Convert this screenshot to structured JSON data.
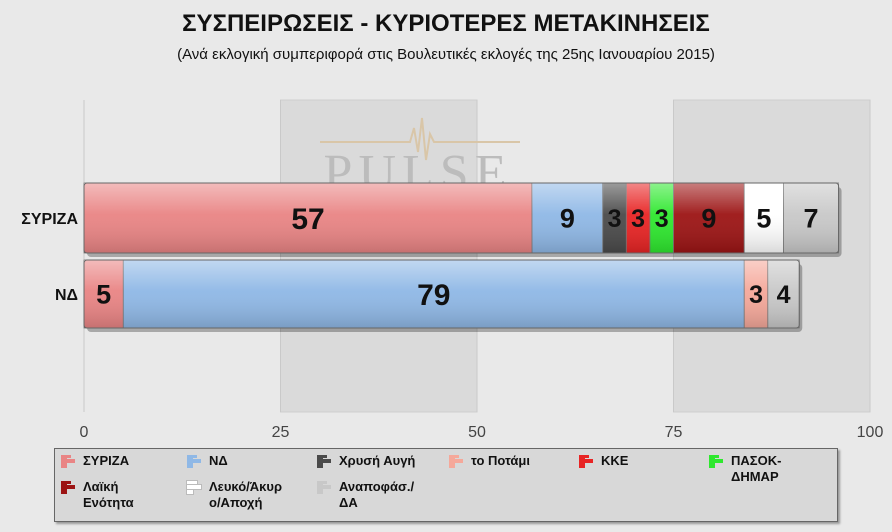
{
  "title": "ΣΥΣΠΕΙΡΩΣΕΙΣ - ΚΥΡΙΟΤΕΡΕΣ ΜΕΤΑΚΙΝΗΣΕΙΣ",
  "subtitle": "(Ανά εκλογική συμπεριφορά στις Βουλευτικές εκλογές της 25ης Ιανουαρίου 2015)",
  "watermark": "PULSE",
  "chart_data": {
    "type": "bar",
    "orientation": "horizontal",
    "stacked": true,
    "categories": [
      "ΣΥΡΙΖΑ",
      "ΝΔ"
    ],
    "xlim": [
      0,
      100
    ],
    "xticks": [
      0,
      25,
      50,
      75,
      100
    ],
    "series": [
      {
        "name": "ΣΥΡΙΖΑ",
        "color": "#e98484",
        "values": [
          57,
          5
        ]
      },
      {
        "name": "ΝΔ",
        "color": "#8fb8e6",
        "values": [
          9,
          79
        ]
      },
      {
        "name": "Χρυσή Αυγή",
        "color": "#4a4a4a",
        "values": [
          3,
          0
        ]
      },
      {
        "name": "το Ποτάμι",
        "color": "#f5a89a",
        "values": [
          0,
          3
        ]
      },
      {
        "name": "ΚΚΕ",
        "color": "#e82424",
        "values": [
          3,
          0
        ]
      },
      {
        "name": "ΠΑΣΟΚ-\nΔΗΜΑΡ",
        "color": "#2ee82e",
        "values": [
          3,
          0
        ]
      },
      {
        "name": "Λαϊκή\nΕνότητα",
        "color": "#9c1414",
        "values": [
          9,
          0
        ]
      },
      {
        "name": "Λευκό/Άκυρ\nο/Αποχή",
        "color": "#ffffff",
        "values": [
          5,
          0
        ]
      },
      {
        "name": "Αναποφάσ./\nΔΑ",
        "color": "#c8c8c8",
        "values": [
          7,
          4
        ]
      }
    ],
    "legend": {
      "position": "bottom",
      "columns": 6
    }
  }
}
